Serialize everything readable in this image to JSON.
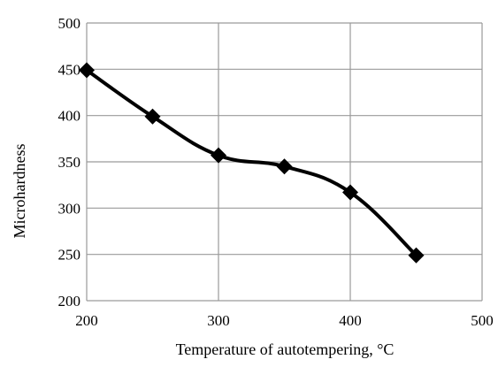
{
  "chart_data": {
    "type": "line",
    "title": "",
    "xlabel": "Temperature of autotempering, °C",
    "ylabel": "Microhardness",
    "xlim": [
      200,
      500
    ],
    "ylim": [
      200,
      500
    ],
    "x_ticks": [
      200,
      300,
      400,
      500
    ],
    "y_ticks": [
      200,
      250,
      300,
      350,
      400,
      450,
      500
    ],
    "grid": true,
    "grid_orientation": "vertical and horizontal",
    "legend": "none",
    "line_style": "smooth",
    "marker": "diamond",
    "series": [
      {
        "color": "#000000",
        "x": [
          200,
          250,
          300,
          350,
          400,
          450
        ],
        "y": [
          449,
          399,
          357,
          345,
          317,
          249
        ]
      }
    ]
  }
}
